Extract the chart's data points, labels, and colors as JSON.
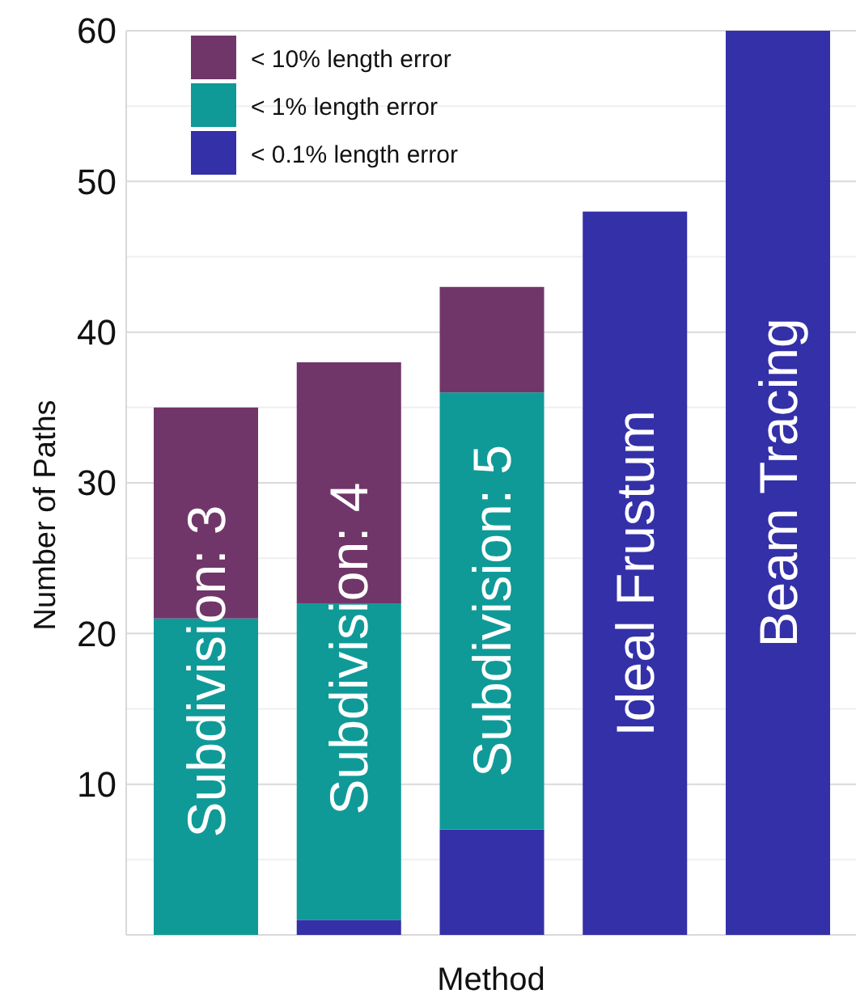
{
  "chart_data": {
    "type": "bar",
    "stacked": true,
    "xlabel": "Method",
    "ylabel": "Number of Paths",
    "categories": [
      "Subdivision: 3",
      "Subdivision: 4",
      "Subdivision: 5",
      "Ideal Frustum",
      "Beam Tracing"
    ],
    "series": [
      {
        "name": "< 0.1% length error",
        "color": "#3430a8",
        "values": [
          0,
          1,
          7,
          48,
          60
        ]
      },
      {
        "name": "< 1% length error",
        "color": "#0f9a98",
        "values": [
          21,
          21,
          29,
          0,
          0
        ]
      },
      {
        "name": "< 10% length error",
        "color": "#713669",
        "values": [
          14,
          16,
          7,
          0,
          0
        ]
      }
    ],
    "ylim": [
      0,
      60
    ],
    "yticks": [
      {
        "value": 5,
        "label": null
      },
      10,
      {
        "value": 15,
        "label": null
      },
      20,
      {
        "value": 25,
        "label": null
      },
      30,
      {
        "value": 35,
        "label": null
      },
      40,
      {
        "value": 45,
        "label": null
      },
      50,
      {
        "value": 55,
        "label": null
      },
      60
    ],
    "grid": true,
    "legend": "top left"
  }
}
